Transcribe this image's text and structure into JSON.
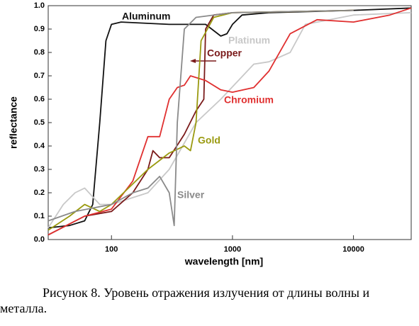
{
  "chart_data": {
    "type": "line",
    "xlabel": "wavelength [nm]",
    "ylabel": "reflectance",
    "xscale": "log",
    "grid": false,
    "xlim": [
      30,
      30000
    ],
    "xticks": [
      100,
      1000,
      10000
    ],
    "ylim": [
      0,
      1
    ],
    "yticks": [
      {
        "value": 0,
        "label": "0.0"
      },
      0.1,
      0.2,
      0.3,
      0.4,
      0.5,
      0.6,
      0.7,
      0.8,
      0.9,
      {
        "value": 1,
        "label": "1.0"
      }
    ],
    "series": [
      {
        "name": "Aluminum",
        "color": "#111111",
        "x": [
          30,
          45,
          60,
          70,
          80,
          90,
          100,
          120,
          300,
          600,
          800,
          900,
          1000,
          1200,
          2000,
          10000,
          30000
        ],
        "values": [
          0.05,
          0.06,
          0.08,
          0.15,
          0.5,
          0.85,
          0.92,
          0.93,
          0.92,
          0.92,
          0.87,
          0.88,
          0.92,
          0.96,
          0.97,
          0.98,
          0.99
        ]
      },
      {
        "name": "Platinum",
        "color": "#c8c8c8",
        "x": [
          30,
          40,
          50,
          60,
          80,
          100,
          200,
          300,
          500,
          800,
          1500,
          2000,
          3000,
          4000,
          10000,
          30000
        ],
        "values": [
          0.05,
          0.15,
          0.2,
          0.22,
          0.15,
          0.15,
          0.2,
          0.3,
          0.5,
          0.6,
          0.75,
          0.76,
          0.8,
          0.92,
          0.96,
          0.97
        ]
      },
      {
        "name": "Copper",
        "color": "#7a1a1a",
        "x": [
          30,
          60,
          100,
          150,
          200,
          220,
          250,
          300,
          400,
          500,
          580,
          600,
          700,
          1000,
          10000
        ],
        "values": [
          0.02,
          0.1,
          0.12,
          0.2,
          0.3,
          0.38,
          0.35,
          0.35,
          0.45,
          0.55,
          0.6,
          0.9,
          0.96,
          0.97,
          0.98
        ]
      },
      {
        "name": "Chromium",
        "color": "#e03030",
        "x": [
          30,
          60,
          100,
          150,
          200,
          250,
          300,
          350,
          400,
          450,
          600,
          800,
          1000,
          1500,
          2000,
          3000,
          5000,
          10000,
          20000,
          30000
        ],
        "values": [
          0.02,
          0.1,
          0.13,
          0.25,
          0.44,
          0.44,
          0.6,
          0.65,
          0.66,
          0.7,
          0.68,
          0.64,
          0.63,
          0.65,
          0.72,
          0.88,
          0.94,
          0.93,
          0.96,
          0.99
        ]
      },
      {
        "name": "Gold",
        "color": "#9a9a10",
        "x": [
          30,
          45,
          60,
          80,
          100,
          200,
          300,
          400,
          450,
          500,
          550,
          700,
          1000,
          10000
        ],
        "values": [
          0.04,
          0.1,
          0.15,
          0.12,
          0.15,
          0.3,
          0.37,
          0.4,
          0.38,
          0.5,
          0.85,
          0.95,
          0.97,
          0.98
        ]
      },
      {
        "name": "Silver",
        "color": "#8a8a8a",
        "x": [
          30,
          50,
          100,
          150,
          200,
          250,
          300,
          330,
          350,
          400,
          500,
          1000,
          10000
        ],
        "values": [
          0.08,
          0.12,
          0.15,
          0.2,
          0.22,
          0.27,
          0.2,
          0.06,
          0.5,
          0.9,
          0.95,
          0.97,
          0.98
        ]
      }
    ]
  },
  "caption": "Рисунок 8. Уровень отражения излучения от длины волны и металла."
}
